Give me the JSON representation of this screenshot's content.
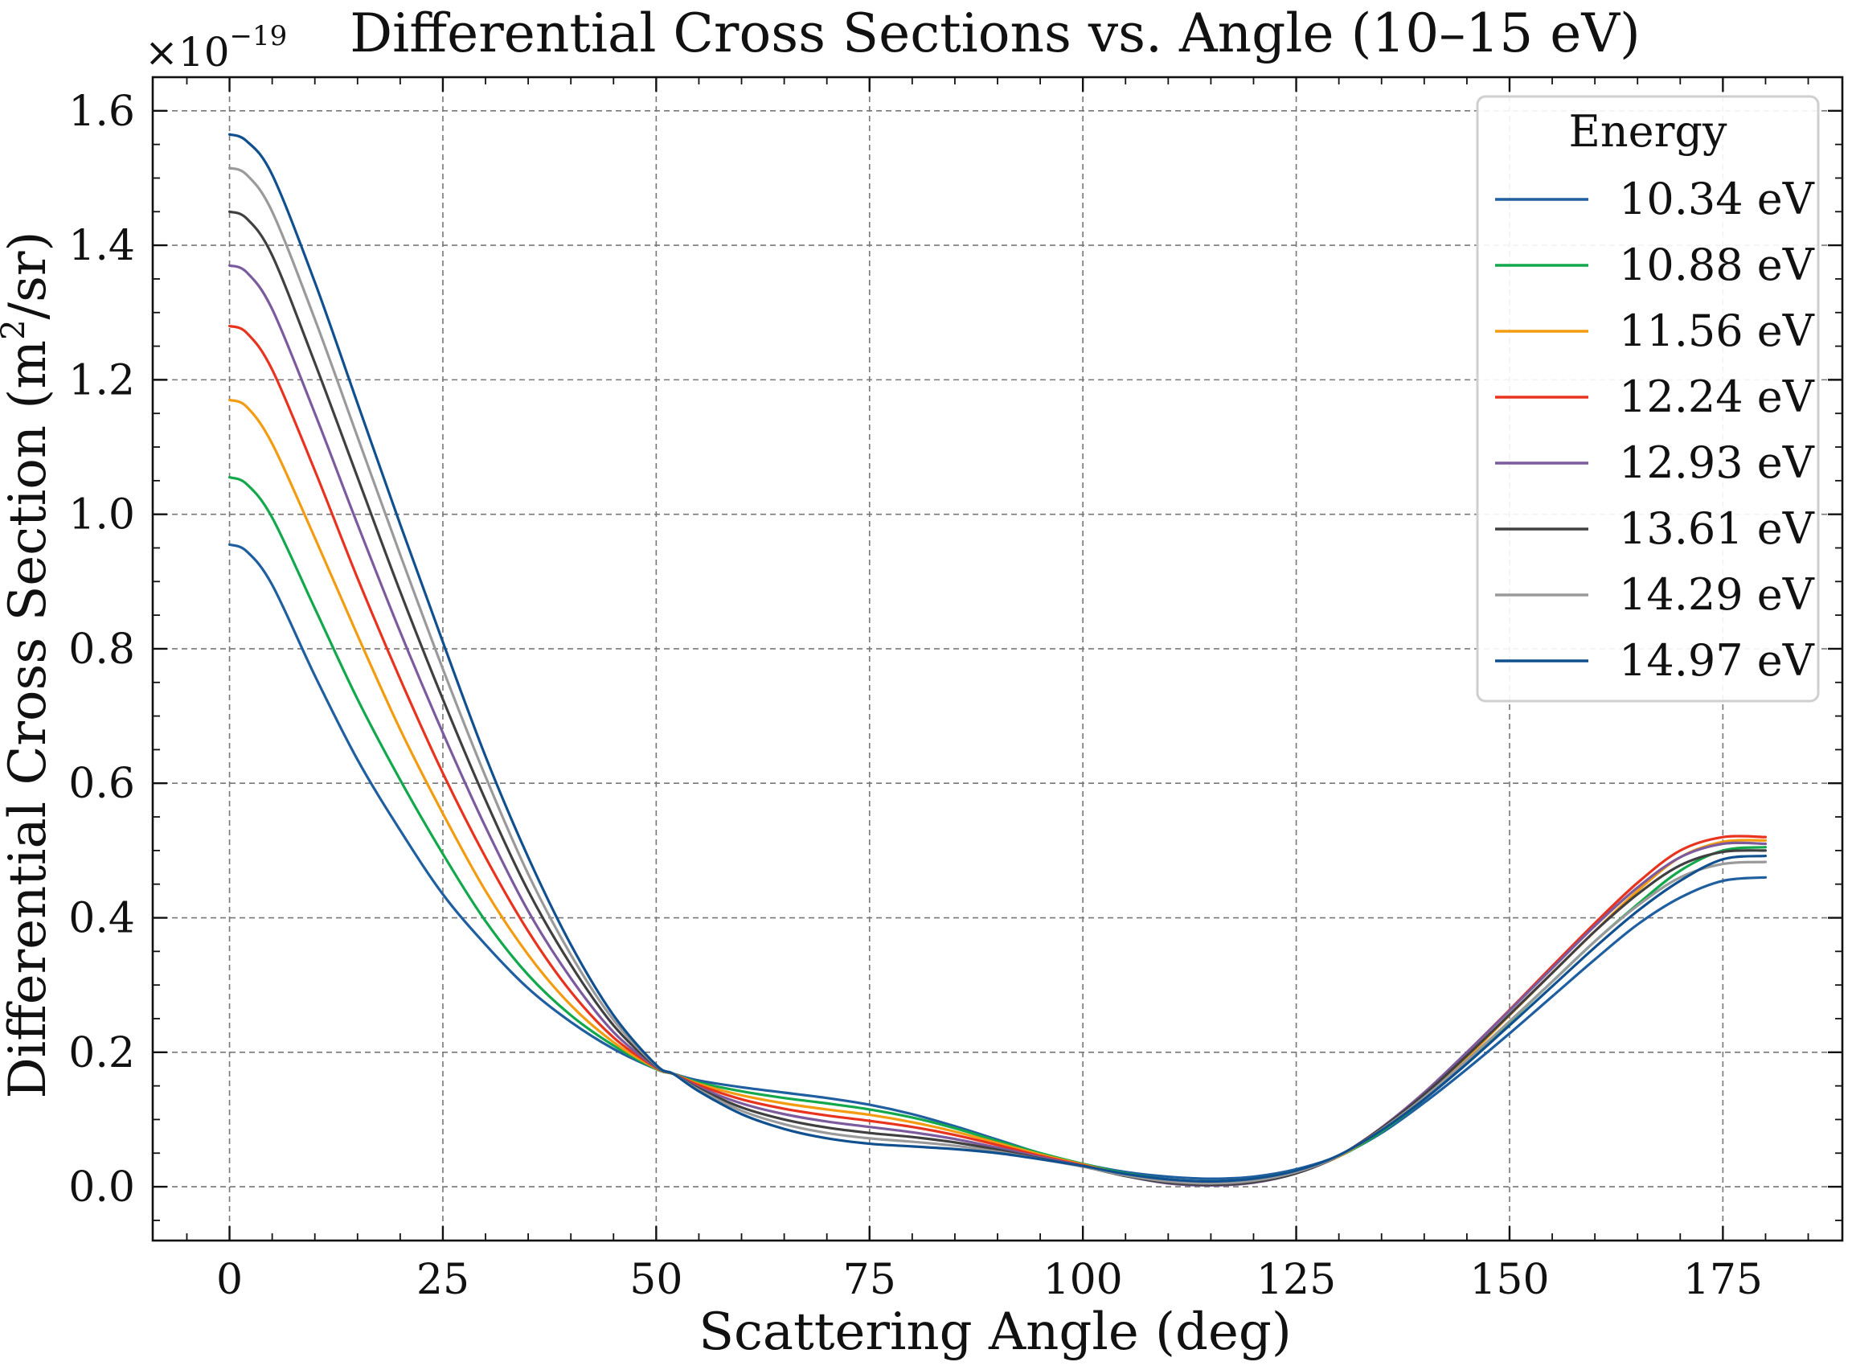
{
  "chart_data": {
    "type": "line",
    "title": "Differential Cross Sections vs. Angle (10–15 eV)",
    "xlabel": "Scattering Angle (deg)",
    "ylabel_main": "Differential Cross Section (m",
    "ylabel_sup": "2",
    "ylabel_tail": "/sr)",
    "y_multiplier_base": "×10",
    "y_multiplier_exp": "−19",
    "xlim": [
      -9,
      189
    ],
    "ylim": [
      -0.08,
      1.65
    ],
    "x_ticks": [
      0,
      25,
      50,
      75,
      100,
      125,
      150,
      175
    ],
    "y_ticks": [
      0.0,
      0.2,
      0.4,
      0.6,
      0.8,
      1.0,
      1.2,
      1.4,
      1.6
    ],
    "y_tick_labels": [
      "0.0",
      "0.2",
      "0.4",
      "0.6",
      "0.8",
      "1.0",
      "1.2",
      "1.4",
      "1.6"
    ],
    "grid": true,
    "legend_title": "Energy",
    "legend_position": "top-right",
    "x": [
      0,
      2,
      5,
      10,
      15,
      20,
      25,
      30,
      35,
      40,
      45,
      50,
      52,
      55,
      60,
      65,
      70,
      75,
      80,
      85,
      90,
      95,
      100,
      105,
      110,
      115,
      120,
      125,
      130,
      135,
      140,
      145,
      150,
      155,
      160,
      165,
      170,
      175,
      180
    ],
    "series": [
      {
        "name": "10.34 eV",
        "color": "#1f5fa0",
        "values": [
          0.955,
          0.945,
          0.895,
          0.76,
          0.635,
          0.53,
          0.435,
          0.36,
          0.295,
          0.245,
          0.205,
          0.175,
          0.168,
          0.158,
          0.148,
          0.14,
          0.132,
          0.122,
          0.108,
          0.09,
          0.07,
          0.05,
          0.034,
          0.022,
          0.015,
          0.012,
          0.015,
          0.026,
          0.046,
          0.08,
          0.125,
          0.175,
          0.228,
          0.283,
          0.338,
          0.39,
          0.43,
          0.455,
          0.46
        ]
      },
      {
        "name": "10.88 eV",
        "color": "#12a84b",
        "values": [
          1.055,
          1.045,
          0.995,
          0.86,
          0.725,
          0.605,
          0.495,
          0.395,
          0.315,
          0.255,
          0.21,
          0.175,
          0.168,
          0.155,
          0.142,
          0.132,
          0.124,
          0.115,
          0.103,
          0.087,
          0.068,
          0.05,
          0.034,
          0.02,
          0.011,
          0.008,
          0.012,
          0.024,
          0.045,
          0.082,
          0.13,
          0.185,
          0.245,
          0.305,
          0.365,
          0.42,
          0.47,
          0.5,
          0.505
        ]
      },
      {
        "name": "11.56 eV",
        "color": "#f39c12",
        "values": [
          1.17,
          1.16,
          1.105,
          0.965,
          0.82,
          0.68,
          0.555,
          0.44,
          0.345,
          0.27,
          0.215,
          0.176,
          0.168,
          0.153,
          0.136,
          0.124,
          0.115,
          0.107,
          0.096,
          0.082,
          0.065,
          0.048,
          0.033,
          0.018,
          0.008,
          0.005,
          0.009,
          0.022,
          0.045,
          0.085,
          0.135,
          0.192,
          0.255,
          0.318,
          0.38,
          0.44,
          0.49,
          0.513,
          0.515
        ]
      },
      {
        "name": "12.24 eV",
        "color": "#e8331f",
        "values": [
          1.28,
          1.27,
          1.215,
          1.065,
          0.905,
          0.755,
          0.615,
          0.49,
          0.38,
          0.29,
          0.222,
          0.177,
          0.168,
          0.151,
          0.13,
          0.116,
          0.106,
          0.098,
          0.089,
          0.077,
          0.062,
          0.046,
          0.032,
          0.017,
          0.006,
          0.003,
          0.007,
          0.021,
          0.046,
          0.088,
          0.14,
          0.2,
          0.263,
          0.328,
          0.392,
          0.452,
          0.5,
          0.52,
          0.52
        ]
      },
      {
        "name": "12.93 eV",
        "color": "#7b5a9e",
        "values": [
          1.37,
          1.36,
          1.305,
          1.15,
          0.985,
          0.825,
          0.675,
          0.535,
          0.41,
          0.31,
          0.23,
          0.178,
          0.168,
          0.148,
          0.124,
          0.108,
          0.097,
          0.089,
          0.081,
          0.071,
          0.058,
          0.044,
          0.031,
          0.016,
          0.005,
          0.002,
          0.006,
          0.02,
          0.046,
          0.088,
          0.14,
          0.2,
          0.262,
          0.325,
          0.388,
          0.445,
          0.49,
          0.51,
          0.51
        ]
      },
      {
        "name": "13.61 eV",
        "color": "#404040",
        "values": [
          1.45,
          1.44,
          1.385,
          1.225,
          1.055,
          0.885,
          0.725,
          0.575,
          0.44,
          0.33,
          0.24,
          0.179,
          0.168,
          0.146,
          0.118,
          0.1,
          0.088,
          0.08,
          0.074,
          0.066,
          0.055,
          0.042,
          0.03,
          0.016,
          0.006,
          0.003,
          0.007,
          0.02,
          0.046,
          0.087,
          0.137,
          0.195,
          0.256,
          0.318,
          0.38,
          0.435,
          0.478,
          0.498,
          0.5
        ]
      },
      {
        "name": "14.29 eV",
        "color": "#9a9a9a",
        "values": [
          1.515,
          1.505,
          1.45,
          1.29,
          1.115,
          0.94,
          0.77,
          0.61,
          0.465,
          0.345,
          0.248,
          0.18,
          0.168,
          0.144,
          0.113,
          0.093,
          0.08,
          0.072,
          0.067,
          0.061,
          0.052,
          0.041,
          0.03,
          0.017,
          0.008,
          0.005,
          0.009,
          0.022,
          0.046,
          0.085,
          0.133,
          0.188,
          0.246,
          0.305,
          0.365,
          0.418,
          0.46,
          0.48,
          0.483
        ]
      },
      {
        "name": "14.97 eV",
        "color": "#10508f",
        "values": [
          1.565,
          1.555,
          1.505,
          1.345,
          1.165,
          0.985,
          0.81,
          0.64,
          0.49,
          0.36,
          0.255,
          0.181,
          0.168,
          0.142,
          0.108,
          0.086,
          0.072,
          0.064,
          0.06,
          0.056,
          0.05,
          0.041,
          0.031,
          0.019,
          0.011,
          0.008,
          0.012,
          0.024,
          0.047,
          0.084,
          0.13,
          0.183,
          0.24,
          0.298,
          0.356,
          0.41,
          0.455,
          0.487,
          0.492
        ]
      }
    ]
  }
}
